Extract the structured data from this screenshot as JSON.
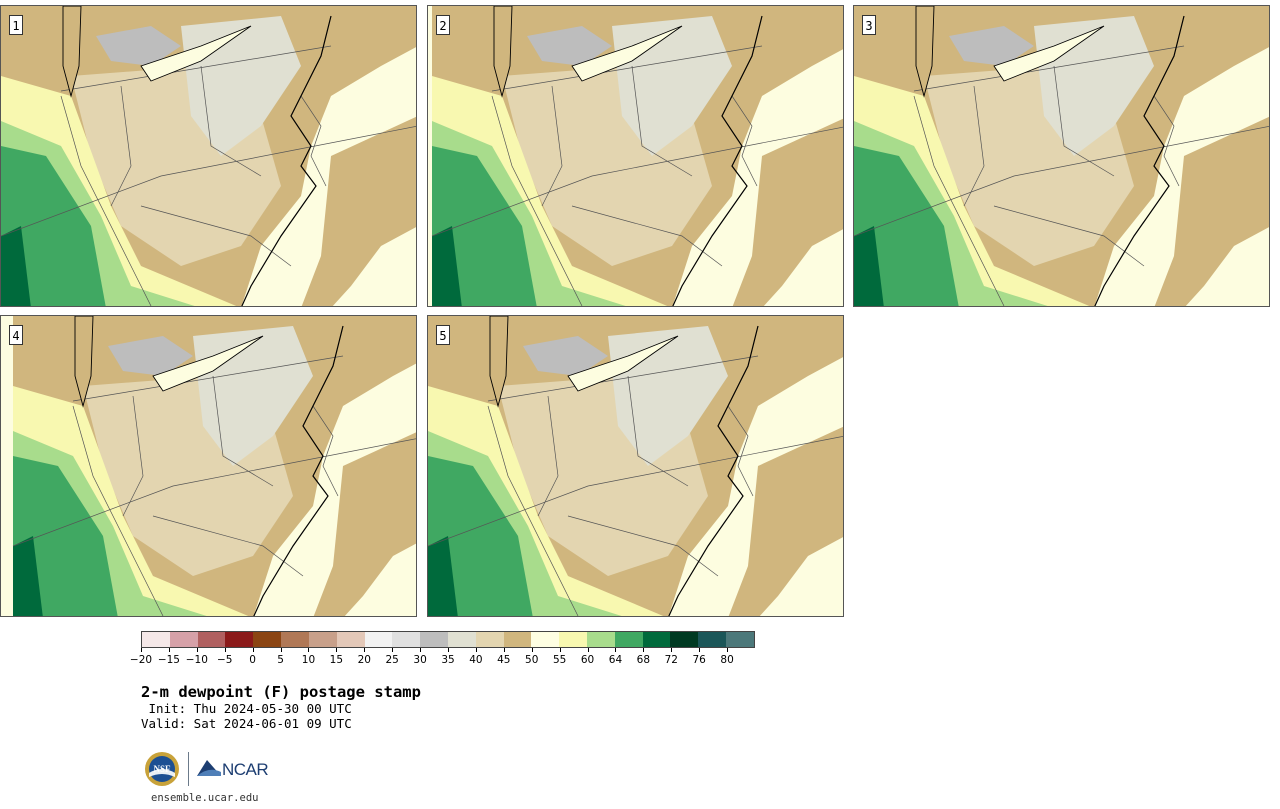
{
  "panels": [
    {
      "label": "1"
    },
    {
      "label": "2"
    },
    {
      "label": "3"
    },
    {
      "label": "4"
    },
    {
      "label": "5"
    }
  ],
  "colorbar": {
    "colors": [
      "#f5e8e8",
      "#d6a1a8",
      "#b06060",
      "#8b1a1a",
      "#8b4513",
      "#b07856",
      "#c8a08a",
      "#e3c8b8",
      "#f2f2f2",
      "#e0e0e0",
      "#bdbdbd",
      "#e0e0d2",
      "#e3d5b0",
      "#d0b67e",
      "#fefee2",
      "#f8f8b0",
      "#a8dc8c",
      "#40a862",
      "#006a3c",
      "#003a22",
      "#1b5658",
      "#4c787a"
    ],
    "tick_labels": [
      "−20",
      "−15",
      "−10",
      "−5",
      "0",
      "5",
      "10",
      "15",
      "20",
      "25",
      "30",
      "35",
      "40",
      "45",
      "50",
      "55",
      "60",
      "64",
      "68",
      "72",
      "76",
      "80"
    ]
  },
  "title": "2-m dewpoint (F) postage stamp",
  "init_line": " Init: Thu 2024-05-30 00 UTC",
  "valid_line": "Valid: Sat 2024-06-01 09 UTC",
  "logos": {
    "nsf_text": "NSF",
    "ncar_text": "NCAR"
  },
  "url": "ensemble.ucar.edu",
  "map_colors": {
    "ocean": "#fdfde0",
    "tan": "#d0b67e",
    "light_tan": "#e3d5b0",
    "gray": "#e0e0d2",
    "dark_gray": "#bdbdbd",
    "light_yellow": "#f8f8b0",
    "light_green": "#a8dc8c",
    "green": "#40a862",
    "dark_green": "#006a3c"
  }
}
